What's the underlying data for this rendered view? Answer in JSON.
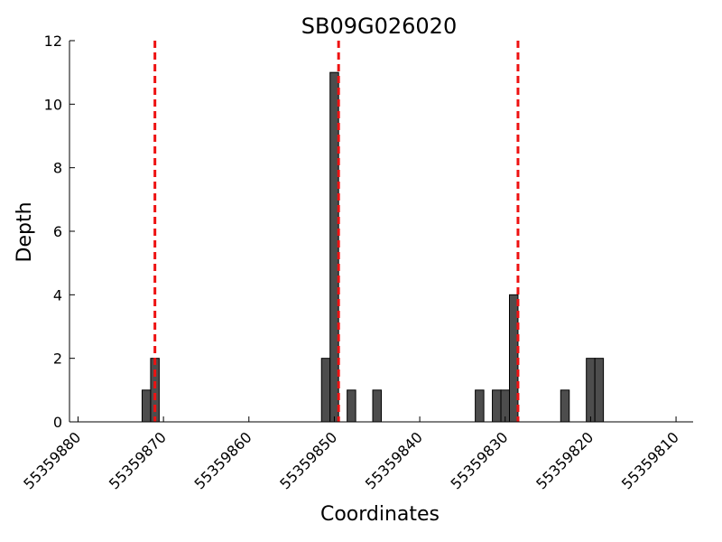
{
  "chart_data": {
    "type": "bar",
    "title": "SB09G026020",
    "xlabel": "Coordinates",
    "ylabel": "Depth",
    "xlim": [
      55359881,
      55359808
    ],
    "x_inverted": true,
    "ylim": [
      0,
      12
    ],
    "x_ticks": [
      55359880,
      55359870,
      55359860,
      55359850,
      55359840,
      55359830,
      55359820,
      55359810
    ],
    "x_tick_labels": [
      "55359880",
      "55359870",
      "55359860",
      "55359850",
      "55359840",
      "55359830",
      "55359820",
      "55359810"
    ],
    "y_ticks": [
      0,
      2,
      4,
      6,
      8,
      10,
      12
    ],
    "y_tick_labels": [
      "0",
      "2",
      "4",
      "6",
      "8",
      "10",
      "12"
    ],
    "bar_color": "#4d4d4d",
    "bar_edge_color": "#000000",
    "grid": false,
    "bars": [
      {
        "x": 55359872,
        "value": 1
      },
      {
        "x": 55359871,
        "value": 2
      },
      {
        "x": 55359851,
        "value": 2
      },
      {
        "x": 55359850,
        "value": 11
      },
      {
        "x": 55359848,
        "value": 1
      },
      {
        "x": 55359845,
        "value": 1
      },
      {
        "x": 55359833,
        "value": 1
      },
      {
        "x": 55359831,
        "value": 1
      },
      {
        "x": 55359830,
        "value": 1
      },
      {
        "x": 55359829,
        "value": 4
      },
      {
        "x": 55359823,
        "value": 1
      },
      {
        "x": 55359820,
        "value": 2
      },
      {
        "x": 55359819,
        "value": 2
      }
    ],
    "reference_lines": [
      {
        "x": 55359871,
        "color": "#ee1111",
        "style": "dashed"
      },
      {
        "x": 55359849.5,
        "color": "#ee1111",
        "style": "dashed"
      },
      {
        "x": 55359828.5,
        "color": "#ee1111",
        "style": "dashed"
      }
    ]
  }
}
